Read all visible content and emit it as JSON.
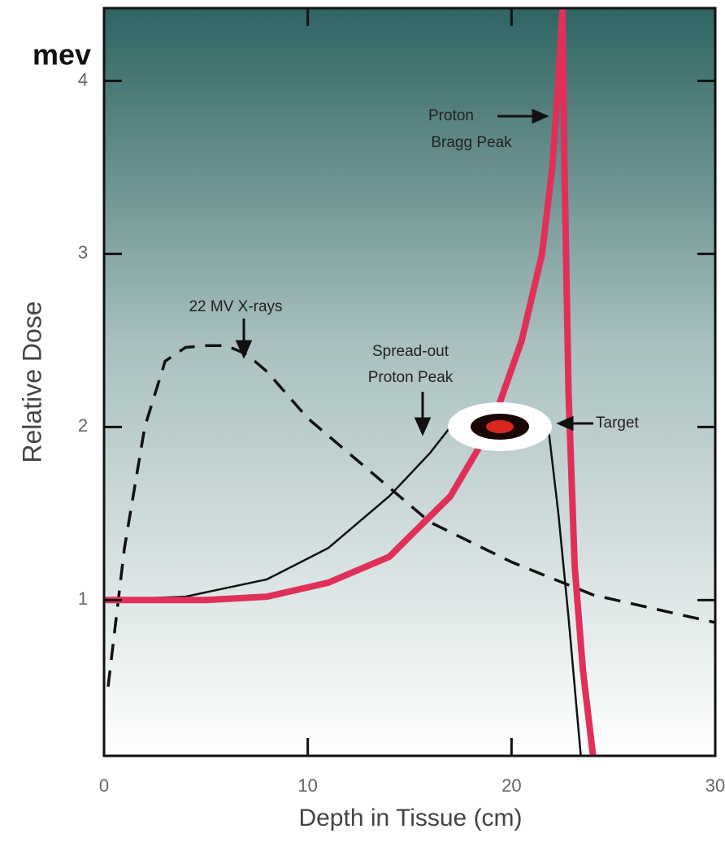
{
  "chart_data": {
    "type": "line",
    "title": "mev",
    "x_label": "Depth in Tissue (cm)",
    "y_label": "Relative Dose",
    "xlim": [
      0,
      30
    ],
    "ylim": [
      0.1,
      4.42
    ],
    "xticks": [
      0,
      10,
      20,
      30
    ],
    "yticks": [
      1,
      2,
      3,
      4
    ],
    "series": [
      {
        "color": "#111111",
        "style": "dashed",
        "x": [
          0.2,
          1,
          2,
          3,
          4,
          5,
          6,
          7,
          8,
          10,
          13,
          16,
          20,
          24,
          27,
          30
        ],
        "values": [
          0.5,
          1.3,
          2.0,
          2.38,
          2.46,
          2.47,
          2.47,
          2.42,
          2.32,
          2.05,
          1.75,
          1.45,
          1.22,
          1.03,
          0.95,
          0.87
        ]
      },
      {
        "color": "#111111",
        "style": "solid",
        "x": [
          0,
          4,
          8,
          11,
          14,
          16,
          17,
          21.8,
          22.3,
          22.8,
          23.4
        ],
        "values": [
          1.0,
          1.02,
          1.12,
          1.3,
          1.6,
          1.85,
          2.0,
          2.0,
          1.5,
          0.9,
          0.1
        ]
      },
      {
        "color": "#e0305a",
        "style": "thick",
        "x": [
          0,
          5,
          8,
          11,
          14,
          17,
          19,
          20.5,
          21.5,
          22,
          22.3,
          22.5,
          22.6,
          22.8,
          23.1,
          23.5,
          24
        ],
        "values": [
          1.0,
          1.0,
          1.02,
          1.1,
          1.25,
          1.6,
          2.0,
          2.5,
          3.0,
          3.5,
          4.0,
          4.4,
          3.5,
          2.2,
          1.2,
          0.6,
          0.1
        ]
      }
    ],
    "annotations": [
      "Proton",
      "Bragg Peak",
      "22 MV X-rays",
      "Spread-out",
      "Proton Peak",
      "Target"
    ]
  }
}
